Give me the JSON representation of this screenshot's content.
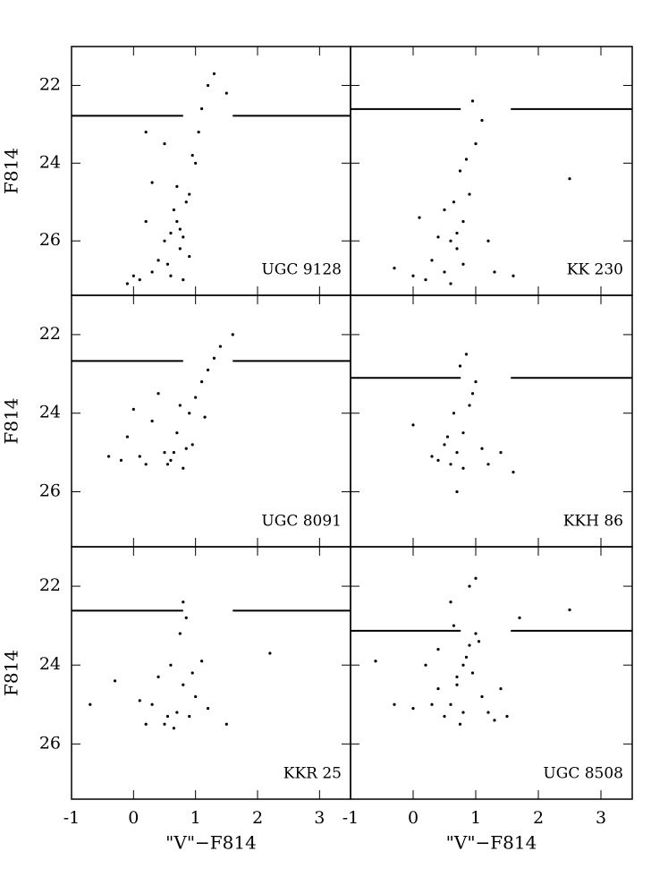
{
  "chart_data": [
    {
      "type": "scatter",
      "label": "UGC 9128",
      "ylabel": "F814",
      "color": "#000000",
      "x": [
        0.1,
        0.3,
        0.5,
        0.6,
        0.7,
        0.8,
        0.9,
        1.0,
        0.2,
        0.4,
        0.65,
        0.75,
        0.85,
        0.95,
        1.05,
        1.1,
        1.2,
        0.0,
        -0.1,
        0.3,
        0.55,
        0.7,
        0.9,
        1.3,
        1.5,
        0.6,
        0.8,
        0.5,
        0.2,
        0.75
      ],
      "y": [
        27.0,
        26.8,
        26.0,
        25.8,
        25.5,
        25.9,
        24.8,
        24.0,
        25.5,
        26.5,
        25.2,
        26.2,
        25.0,
        23.8,
        23.2,
        22.6,
        22.0,
        26.9,
        27.1,
        24.5,
        26.6,
        24.6,
        26.4,
        21.7,
        22.2,
        26.9,
        27.0,
        23.5,
        23.2,
        25.7
      ],
      "trgb": 22.78,
      "trgb_gap": [
        0.8,
        1.6
      ],
      "xlim": [
        -1,
        3.5
      ],
      "ylim": [
        27.4,
        21.0
      ],
      "xticks": [
        -1,
        0,
        1,
        2,
        3
      ],
      "yticks": [
        22,
        24,
        26
      ]
    },
    {
      "type": "scatter",
      "label": "KK 230",
      "color": "#000000",
      "x": [
        0.7,
        0.6,
        0.8,
        0.5,
        0.9,
        1.0,
        0.3,
        0.0,
        -0.3,
        1.3,
        1.6,
        0.7,
        0.75,
        0.65,
        0.4,
        0.2,
        1.1,
        0.85,
        0.95,
        0.6,
        2.5,
        0.1,
        0.5,
        0.8,
        1.2
      ],
      "y": [
        25.8,
        26.0,
        25.5,
        26.8,
        24.8,
        23.5,
        26.5,
        26.9,
        26.7,
        26.8,
        26.9,
        26.2,
        24.2,
        25.0,
        25.9,
        27.0,
        22.9,
        23.9,
        22.4,
        27.1,
        24.4,
        25.4,
        25.2,
        26.6,
        26.0
      ],
      "trgb": 22.61,
      "trgb_gap": [
        0.76,
        1.56
      ],
      "xlim": [
        -1,
        3.5
      ],
      "ylim": [
        27.4,
        21.0
      ],
      "xticks": [
        -1,
        0,
        1,
        2,
        3
      ],
      "yticks": [
        22,
        24,
        26
      ]
    },
    {
      "type": "scatter",
      "label": "UGC 8091",
      "ylabel": "F814",
      "color": "#000000",
      "x": [
        -0.4,
        -0.1,
        0.2,
        0.5,
        0.7,
        0.9,
        1.0,
        1.1,
        1.2,
        1.3,
        0.3,
        0.6,
        0.8,
        0.0,
        -0.2,
        0.4,
        1.4,
        1.15,
        0.95,
        0.55,
        1.6,
        0.1,
        0.75,
        0.85,
        0.65
      ],
      "y": [
        25.1,
        24.6,
        25.3,
        25.0,
        24.5,
        24.0,
        23.6,
        23.2,
        22.9,
        22.6,
        24.2,
        25.2,
        25.4,
        23.9,
        25.2,
        23.5,
        22.3,
        24.1,
        24.8,
        25.3,
        22.0,
        25.1,
        23.8,
        24.9,
        25.0
      ],
      "trgb": 22.67,
      "trgb_gap": [
        0.8,
        1.6
      ],
      "xlim": [
        -1,
        3.5
      ],
      "ylim": [
        27.4,
        21.0
      ],
      "xticks": [
        -1,
        0,
        1,
        2,
        3
      ],
      "yticks": [
        22,
        24,
        26
      ]
    },
    {
      "type": "scatter",
      "label": "KKH 86",
      "color": "#000000",
      "x": [
        0.7,
        0.8,
        0.9,
        0.6,
        0.5,
        0.4,
        1.0,
        1.1,
        0.75,
        0.85,
        0.3,
        1.2,
        0.65,
        0.95,
        0.0,
        1.4,
        0.8,
        0.55,
        0.7,
        1.6
      ],
      "y": [
        25.0,
        24.5,
        23.8,
        25.3,
        24.8,
        25.2,
        23.2,
        24.9,
        22.8,
        22.5,
        25.1,
        25.3,
        24.0,
        23.5,
        24.3,
        25.0,
        25.4,
        24.6,
        26.0,
        25.5
      ],
      "trgb": 23.1,
      "trgb_gap": [
        0.76,
        1.56
      ],
      "xlim": [
        -1,
        3.5
      ],
      "ylim": [
        27.4,
        21.0
      ],
      "xticks": [
        -1,
        0,
        1,
        2,
        3
      ],
      "yticks": [
        22,
        24,
        26
      ]
    },
    {
      "type": "scatter",
      "label": "KKR 25",
      "ylabel": "F814",
      "xlabel": "\"V\"−F814",
      "color": "#000000",
      "x": [
        0.7,
        0.8,
        0.5,
        0.6,
        0.9,
        1.0,
        0.3,
        0.2,
        1.2,
        0.75,
        0.85,
        0.4,
        1.1,
        0.1,
        -0.3,
        1.5,
        0.65,
        0.95,
        0.55,
        0.8,
        -0.7,
        2.2
      ],
      "y": [
        25.2,
        24.5,
        25.5,
        24.0,
        25.3,
        24.8,
        25.0,
        25.5,
        25.1,
        23.2,
        22.8,
        24.3,
        23.9,
        24.9,
        24.4,
        25.5,
        25.6,
        24.2,
        25.3,
        22.4,
        25.0,
        23.7
      ],
      "trgb": 22.62,
      "trgb_gap": [
        0.8,
        1.6
      ],
      "xlim": [
        -1,
        3.5
      ],
      "ylim": [
        27.4,
        21.0
      ],
      "xticks": [
        -1,
        0,
        1,
        2,
        3
      ],
      "yticks": [
        22,
        24,
        26
      ]
    },
    {
      "type": "scatter",
      "label": "UGC 8508",
      "xlabel": "\"V\"−F814",
      "color": "#000000",
      "x": [
        0.6,
        0.7,
        0.8,
        0.9,
        1.0,
        1.1,
        0.5,
        0.4,
        0.3,
        1.2,
        1.3,
        0.75,
        0.85,
        0.95,
        0.65,
        0.2,
        0.0,
        -0.3,
        1.5,
        1.7,
        0.9,
        0.6,
        1.0,
        2.5,
        0.4,
        0.8,
        1.4,
        -0.6,
        0.7,
        1.05
      ],
      "y": [
        25.0,
        24.5,
        24.0,
        23.5,
        23.2,
        24.8,
        25.3,
        24.6,
        25.0,
        25.2,
        25.4,
        25.5,
        23.8,
        24.2,
        23.0,
        24.0,
        25.1,
        25.0,
        25.3,
        22.8,
        22.0,
        22.4,
        21.8,
        22.6,
        23.6,
        25.2,
        24.6,
        23.9,
        24.3,
        23.4
      ],
      "trgb": 23.13,
      "trgb_gap": [
        0.76,
        1.56
      ],
      "xlim": [
        -1,
        3.5
      ],
      "ylim": [
        27.4,
        21.0
      ],
      "xticks": [
        -1,
        0,
        1,
        2,
        3
      ],
      "yticks": [
        22,
        24,
        26
      ]
    }
  ]
}
